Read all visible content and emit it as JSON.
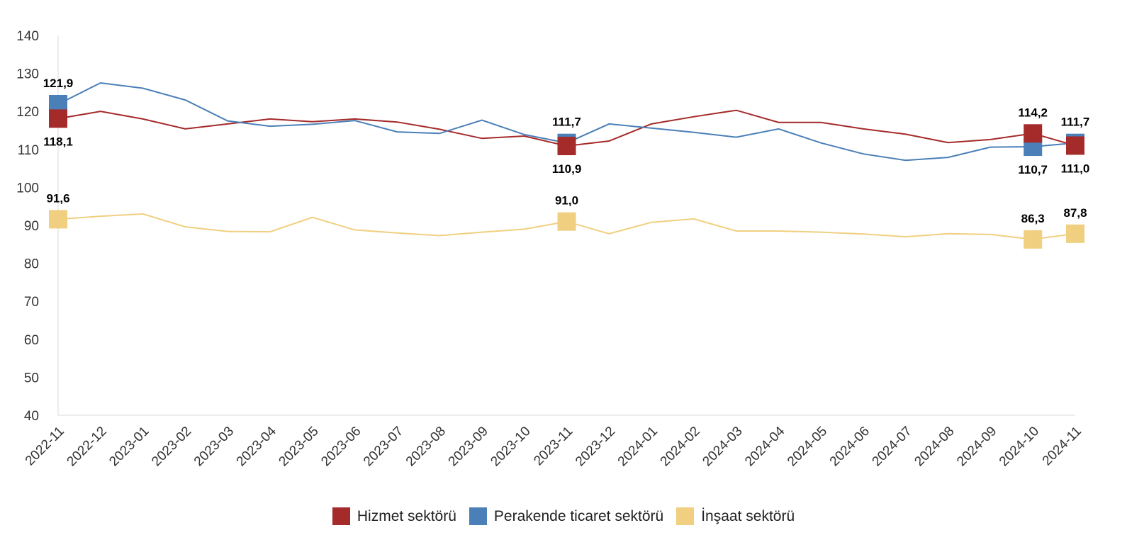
{
  "chart_data": {
    "type": "line",
    "title": "",
    "xlabel": "",
    "ylabel": "",
    "ylim": [
      40,
      140
    ],
    "yticks": [
      40,
      50,
      60,
      70,
      80,
      90,
      100,
      110,
      120,
      130,
      140
    ],
    "grid": false,
    "legend_position": "bottom",
    "categories": [
      "2022-11",
      "2022-12",
      "2023-01",
      "2023-02",
      "2023-03",
      "2023-04",
      "2023-05",
      "2023-06",
      "2023-07",
      "2023-08",
      "2023-09",
      "2023-10",
      "2023-11",
      "2023-12",
      "2024-01",
      "2024-02",
      "2024-03",
      "2024-04",
      "2024-05",
      "2024-06",
      "2024-07",
      "2024-08",
      "2024-09",
      "2024-10",
      "2024-11"
    ],
    "series": [
      {
        "name": "Hizmet sektörü",
        "color": "#a52a2a",
        "values": [
          118.1,
          120.0,
          118.0,
          115.4,
          116.7,
          118.0,
          117.3,
          118.0,
          117.2,
          115.3,
          112.9,
          113.5,
          110.9,
          112.2,
          116.7,
          118.6,
          120.3,
          117.1,
          117.1,
          115.4,
          114.0,
          111.8,
          112.6,
          114.2,
          111.0
        ],
        "labels": [
          {
            "index": 0,
            "text": "118,1",
            "pos": "below"
          },
          {
            "index": 12,
            "text": "110,9",
            "pos": "below"
          },
          {
            "index": 23,
            "text": "114,2",
            "pos": "above"
          },
          {
            "index": 24,
            "text": "111,0",
            "pos": "below"
          }
        ]
      },
      {
        "name": "Perakende ticaret sektörü",
        "color": "#4a7fb8",
        "values": [
          121.9,
          127.5,
          126.1,
          123.0,
          117.5,
          116.1,
          116.6,
          117.6,
          114.6,
          114.2,
          117.7,
          113.9,
          111.7,
          116.7,
          115.6,
          114.5,
          113.2,
          115.4,
          111.7,
          108.8,
          107.1,
          107.9,
          110.6,
          110.7,
          111.7
        ],
        "labels": [
          {
            "index": 0,
            "text": "121,9",
            "pos": "above"
          },
          {
            "index": 12,
            "text": "111,7",
            "pos": "above"
          },
          {
            "index": 23,
            "text": "110,7",
            "pos": "below"
          },
          {
            "index": 24,
            "text": "111,7",
            "pos": "above"
          }
        ]
      },
      {
        "name": "İnşaat sektörü",
        "color": "#f0d080",
        "values": [
          91.6,
          92.4,
          93.0,
          89.6,
          88.4,
          88.3,
          92.1,
          88.8,
          88.0,
          87.3,
          88.2,
          89.0,
          91.0,
          87.8,
          90.8,
          91.7,
          88.5,
          88.5,
          88.2,
          87.7,
          87.0,
          87.8,
          87.6,
          86.3,
          87.8
        ],
        "labels": [
          {
            "index": 0,
            "text": "91,6",
            "pos": "above"
          },
          {
            "index": 12,
            "text": "91,0",
            "pos": "above"
          },
          {
            "index": 23,
            "text": "86,3",
            "pos": "above"
          },
          {
            "index": 24,
            "text": "87,8",
            "pos": "above"
          }
        ]
      }
    ]
  }
}
